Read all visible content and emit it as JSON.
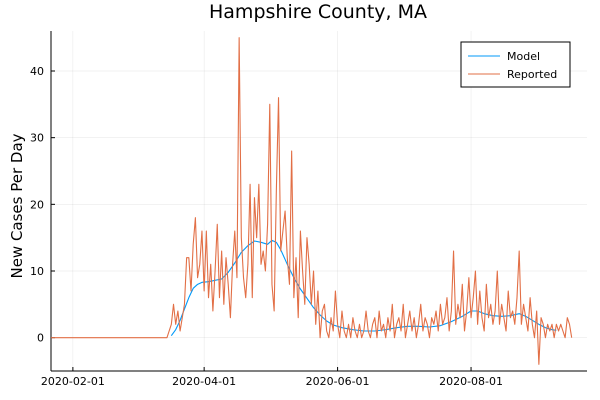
{
  "chart_data": {
    "type": "line",
    "title": "Hampshire County, MA",
    "xlabel": "",
    "ylabel": "New Cases Per Day",
    "x_type": "date",
    "xlim": [
      "2020-01-22",
      "2020-09-23"
    ],
    "ylim": [
      -5,
      46
    ],
    "x_ticks": [
      "2020-02-01",
      "2020-04-01",
      "2020-06-01",
      "2020-08-01"
    ],
    "x_tick_labels": [
      "2020-02-01",
      "2020-04-01",
      "2020-06-01",
      "2020-08-01"
    ],
    "y_ticks": [
      0,
      10,
      20,
      30,
      40
    ],
    "y_tick_labels": [
      "0",
      "10",
      "20",
      "30",
      "40"
    ],
    "grid": true,
    "legend_position": "top-right",
    "colors": {
      "Model": "#009AFA",
      "Reported": "#E26F46"
    },
    "series": [
      {
        "name": "Model",
        "points": [
          [
            "2020-03-17",
            0.3
          ],
          [
            "2020-03-19",
            1.2
          ],
          [
            "2020-03-21",
            2.6
          ],
          [
            "2020-03-23",
            4.3
          ],
          [
            "2020-03-25",
            6.0
          ],
          [
            "2020-03-27",
            7.4
          ],
          [
            "2020-03-29",
            8.0
          ],
          [
            "2020-03-31",
            8.3
          ],
          [
            "2020-04-03",
            8.4
          ],
          [
            "2020-04-06",
            8.6
          ],
          [
            "2020-04-09",
            8.8
          ],
          [
            "2020-04-12",
            9.8
          ],
          [
            "2020-04-15",
            11.2
          ],
          [
            "2020-04-18",
            12.8
          ],
          [
            "2020-04-21",
            13.8
          ],
          [
            "2020-04-24",
            14.5
          ],
          [
            "2020-04-27",
            14.3
          ],
          [
            "2020-04-30",
            14.0
          ],
          [
            "2020-05-02",
            14.6
          ],
          [
            "2020-05-04",
            14.3
          ],
          [
            "2020-05-06",
            13.2
          ],
          [
            "2020-05-09",
            11.0
          ],
          [
            "2020-05-12",
            9.0
          ],
          [
            "2020-05-15",
            7.3
          ],
          [
            "2020-05-18",
            5.9
          ],
          [
            "2020-05-21",
            4.5
          ],
          [
            "2020-05-24",
            3.4
          ],
          [
            "2020-05-27",
            2.5
          ],
          [
            "2020-05-30",
            1.9
          ],
          [
            "2020-06-03",
            1.5
          ],
          [
            "2020-06-08",
            1.2
          ],
          [
            "2020-06-13",
            1.0
          ],
          [
            "2020-06-18",
            1.0
          ],
          [
            "2020-06-23",
            1.2
          ],
          [
            "2020-06-28",
            1.5
          ],
          [
            "2020-07-03",
            1.7
          ],
          [
            "2020-07-08",
            1.7
          ],
          [
            "2020-07-13",
            1.6
          ],
          [
            "2020-07-18",
            1.8
          ],
          [
            "2020-07-23",
            2.4
          ],
          [
            "2020-07-28",
            3.2
          ],
          [
            "2020-08-01",
            4.0
          ],
          [
            "2020-08-04",
            4.0
          ],
          [
            "2020-08-07",
            3.6
          ],
          [
            "2020-08-11",
            3.3
          ],
          [
            "2020-08-15",
            3.2
          ],
          [
            "2020-08-19",
            3.3
          ],
          [
            "2020-08-23",
            3.6
          ],
          [
            "2020-08-26",
            3.2
          ],
          [
            "2020-08-29",
            2.6
          ],
          [
            "2020-09-01",
            2.0
          ],
          [
            "2020-09-04",
            1.5
          ],
          [
            "2020-09-07",
            1.2
          ],
          [
            "2020-09-09",
            1.1
          ]
        ]
      },
      {
        "name": "Reported",
        "points": [
          [
            "2020-01-22",
            0
          ],
          [
            "2020-03-15",
            0
          ],
          [
            "2020-03-16",
            1
          ],
          [
            "2020-03-17",
            2
          ],
          [
            "2020-03-18",
            5
          ],
          [
            "2020-03-19",
            2
          ],
          [
            "2020-03-20",
            4
          ],
          [
            "2020-03-21",
            1
          ],
          [
            "2020-03-22",
            3
          ],
          [
            "2020-03-23",
            5
          ],
          [
            "2020-03-24",
            12
          ],
          [
            "2020-03-25",
            12
          ],
          [
            "2020-03-26",
            7
          ],
          [
            "2020-03-27",
            14
          ],
          [
            "2020-03-28",
            18
          ],
          [
            "2020-03-29",
            9
          ],
          [
            "2020-03-30",
            11
          ],
          [
            "2020-03-31",
            16
          ],
          [
            "2020-04-01",
            7
          ],
          [
            "2020-04-02",
            16
          ],
          [
            "2020-04-03",
            6
          ],
          [
            "2020-04-04",
            11
          ],
          [
            "2020-04-05",
            4
          ],
          [
            "2020-04-06",
            10
          ],
          [
            "2020-04-07",
            17
          ],
          [
            "2020-04-08",
            6
          ],
          [
            "2020-04-09",
            13
          ],
          [
            "2020-04-10",
            5
          ],
          [
            "2020-04-11",
            12
          ],
          [
            "2020-04-12",
            8
          ],
          [
            "2020-04-13",
            3
          ],
          [
            "2020-04-14",
            11
          ],
          [
            "2020-04-15",
            16
          ],
          [
            "2020-04-16",
            9
          ],
          [
            "2020-04-17",
            45
          ],
          [
            "2020-04-18",
            15
          ],
          [
            "2020-04-19",
            9
          ],
          [
            "2020-04-20",
            6
          ],
          [
            "2020-04-21",
            11
          ],
          [
            "2020-04-22",
            23
          ],
          [
            "2020-04-23",
            6
          ],
          [
            "2020-04-24",
            21
          ],
          [
            "2020-04-25",
            15
          ],
          [
            "2020-04-26",
            23
          ],
          [
            "2020-04-27",
            11
          ],
          [
            "2020-04-28",
            13
          ],
          [
            "2020-04-29",
            10
          ],
          [
            "2020-04-30",
            17
          ],
          [
            "2020-05-01",
            35
          ],
          [
            "2020-05-02",
            8
          ],
          [
            "2020-05-03",
            4
          ],
          [
            "2020-05-04",
            22
          ],
          [
            "2020-05-05",
            36
          ],
          [
            "2020-05-06",
            13
          ],
          [
            "2020-05-07",
            16
          ],
          [
            "2020-05-08",
            19
          ],
          [
            "2020-05-09",
            12
          ],
          [
            "2020-05-10",
            8
          ],
          [
            "2020-05-11",
            28
          ],
          [
            "2020-05-12",
            6
          ],
          [
            "2020-05-13",
            12
          ],
          [
            "2020-05-14",
            3
          ],
          [
            "2020-05-15",
            16
          ],
          [
            "2020-05-16",
            10
          ],
          [
            "2020-05-17",
            5
          ],
          [
            "2020-05-18",
            15
          ],
          [
            "2020-05-19",
            11
          ],
          [
            "2020-05-20",
            5
          ],
          [
            "2020-05-21",
            10
          ],
          [
            "2020-05-22",
            2
          ],
          [
            "2020-05-23",
            7
          ],
          [
            "2020-05-24",
            0
          ],
          [
            "2020-05-25",
            4
          ],
          [
            "2020-05-26",
            5
          ],
          [
            "2020-05-27",
            1
          ],
          [
            "2020-05-28",
            0
          ],
          [
            "2020-05-29",
            3
          ],
          [
            "2020-05-30",
            1
          ],
          [
            "2020-05-31",
            7
          ],
          [
            "2020-06-01",
            2
          ],
          [
            "2020-06-02",
            0
          ],
          [
            "2020-06-03",
            4
          ],
          [
            "2020-06-04",
            1
          ],
          [
            "2020-06-05",
            0
          ],
          [
            "2020-06-06",
            2
          ],
          [
            "2020-06-07",
            0
          ],
          [
            "2020-06-08",
            3
          ],
          [
            "2020-06-09",
            1
          ],
          [
            "2020-06-10",
            0
          ],
          [
            "2020-06-11",
            2
          ],
          [
            "2020-06-12",
            0
          ],
          [
            "2020-06-13",
            1
          ],
          [
            "2020-06-14",
            4
          ],
          [
            "2020-06-15",
            1
          ],
          [
            "2020-06-16",
            0
          ],
          [
            "2020-06-17",
            2
          ],
          [
            "2020-06-18",
            3
          ],
          [
            "2020-06-19",
            0
          ],
          [
            "2020-06-20",
            4
          ],
          [
            "2020-06-21",
            1
          ],
          [
            "2020-06-22",
            2
          ],
          [
            "2020-06-23",
            0
          ],
          [
            "2020-06-24",
            3
          ],
          [
            "2020-06-25",
            1
          ],
          [
            "2020-06-26",
            5
          ],
          [
            "2020-06-27",
            0
          ],
          [
            "2020-06-28",
            2
          ],
          [
            "2020-06-29",
            3
          ],
          [
            "2020-06-30",
            1
          ],
          [
            "2020-07-01",
            5
          ],
          [
            "2020-07-02",
            0
          ],
          [
            "2020-07-03",
            2
          ],
          [
            "2020-07-04",
            4
          ],
          [
            "2020-07-05",
            1
          ],
          [
            "2020-07-06",
            3
          ],
          [
            "2020-07-07",
            0
          ],
          [
            "2020-07-08",
            2
          ],
          [
            "2020-07-09",
            5
          ],
          [
            "2020-07-10",
            1
          ],
          [
            "2020-07-11",
            3
          ],
          [
            "2020-07-12",
            2
          ],
          [
            "2020-07-13",
            0
          ],
          [
            "2020-07-14",
            3
          ],
          [
            "2020-07-15",
            2
          ],
          [
            "2020-07-16",
            4
          ],
          [
            "2020-07-17",
            1
          ],
          [
            "2020-07-18",
            5
          ],
          [
            "2020-07-19",
            2
          ],
          [
            "2020-07-20",
            3
          ],
          [
            "2020-07-21",
            6
          ],
          [
            "2020-07-22",
            1
          ],
          [
            "2020-07-23",
            4
          ],
          [
            "2020-07-24",
            13
          ],
          [
            "2020-07-25",
            2
          ],
          [
            "2020-07-26",
            5
          ],
          [
            "2020-07-27",
            3
          ],
          [
            "2020-07-28",
            8
          ],
          [
            "2020-07-29",
            1
          ],
          [
            "2020-07-30",
            4
          ],
          [
            "2020-07-31",
            9
          ],
          [
            "2020-08-01",
            3
          ],
          [
            "2020-08-02",
            6
          ],
          [
            "2020-08-03",
            10
          ],
          [
            "2020-08-04",
            2
          ],
          [
            "2020-08-05",
            7
          ],
          [
            "2020-08-06",
            3
          ],
          [
            "2020-08-07",
            1
          ],
          [
            "2020-08-08",
            8
          ],
          [
            "2020-08-09",
            3
          ],
          [
            "2020-08-10",
            5
          ],
          [
            "2020-08-11",
            2
          ],
          [
            "2020-08-12",
            4
          ],
          [
            "2020-08-13",
            10
          ],
          [
            "2020-08-14",
            2
          ],
          [
            "2020-08-15",
            5
          ],
          [
            "2020-08-16",
            3
          ],
          [
            "2020-08-17",
            1
          ],
          [
            "2020-08-18",
            7
          ],
          [
            "2020-08-19",
            3
          ],
          [
            "2020-08-20",
            4
          ],
          [
            "2020-08-21",
            2
          ],
          [
            "2020-08-22",
            6
          ],
          [
            "2020-08-23",
            13
          ],
          [
            "2020-08-24",
            2
          ],
          [
            "2020-08-25",
            5
          ],
          [
            "2020-08-26",
            3
          ],
          [
            "2020-08-27",
            1
          ],
          [
            "2020-08-28",
            6
          ],
          [
            "2020-08-29",
            2
          ],
          [
            "2020-08-30",
            0
          ],
          [
            "2020-08-31",
            4
          ],
          [
            "2020-09-01",
            -4
          ],
          [
            "2020-09-02",
            3
          ],
          [
            "2020-09-03",
            2
          ],
          [
            "2020-09-04",
            0
          ],
          [
            "2020-09-05",
            2
          ],
          [
            "2020-09-06",
            1
          ],
          [
            "2020-09-07",
            2
          ],
          [
            "2020-09-08",
            0
          ],
          [
            "2020-09-09",
            2
          ],
          [
            "2020-09-10",
            1
          ],
          [
            "2020-09-11",
            2
          ],
          [
            "2020-09-12",
            1
          ],
          [
            "2020-09-13",
            0
          ],
          [
            "2020-09-14",
            3
          ],
          [
            "2020-09-15",
            2
          ],
          [
            "2020-09-16",
            0
          ]
        ]
      }
    ]
  }
}
